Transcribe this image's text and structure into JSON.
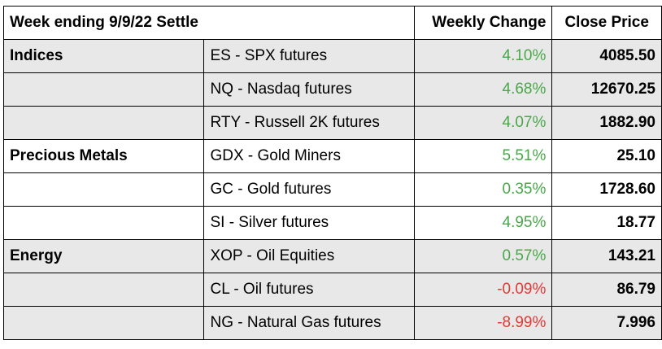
{
  "table": {
    "title": "Week ending 9/9/22 Settle",
    "col_change": "Weekly Change",
    "col_close": "Close Price",
    "colors": {
      "positive": "#4aa84a",
      "negative": "#e53935",
      "shade": "#e8e8e8"
    },
    "rows": [
      {
        "group": "Indices",
        "instrument": "ES - SPX futures",
        "change": "4.10%",
        "close": "4085.50"
      },
      {
        "group": "",
        "instrument": "NQ - Nasdaq futures",
        "change": "4.68%",
        "close": "12670.25"
      },
      {
        "group": "",
        "instrument": "RTY - Russell 2K futures",
        "change": "4.07%",
        "close": "1882.90"
      },
      {
        "group": "Precious Metals",
        "instrument": "GDX - Gold Miners",
        "change": "5.51%",
        "close": "25.10"
      },
      {
        "group": "",
        "instrument": "GC - Gold futures",
        "change": "0.35%",
        "close": "1728.60"
      },
      {
        "group": "",
        "instrument": "SI - Silver futures",
        "change": "4.95%",
        "close": "18.77"
      },
      {
        "group": "Energy",
        "instrument": "XOP - Oil Equities",
        "change": "0.57%",
        "close": "143.21"
      },
      {
        "group": "",
        "instrument": "CL - Oil futures",
        "change": "-0.09%",
        "close": "86.79"
      },
      {
        "group": "",
        "instrument": "NG - Natural Gas futures",
        "change": "-8.99%",
        "close": "7.996"
      }
    ]
  }
}
